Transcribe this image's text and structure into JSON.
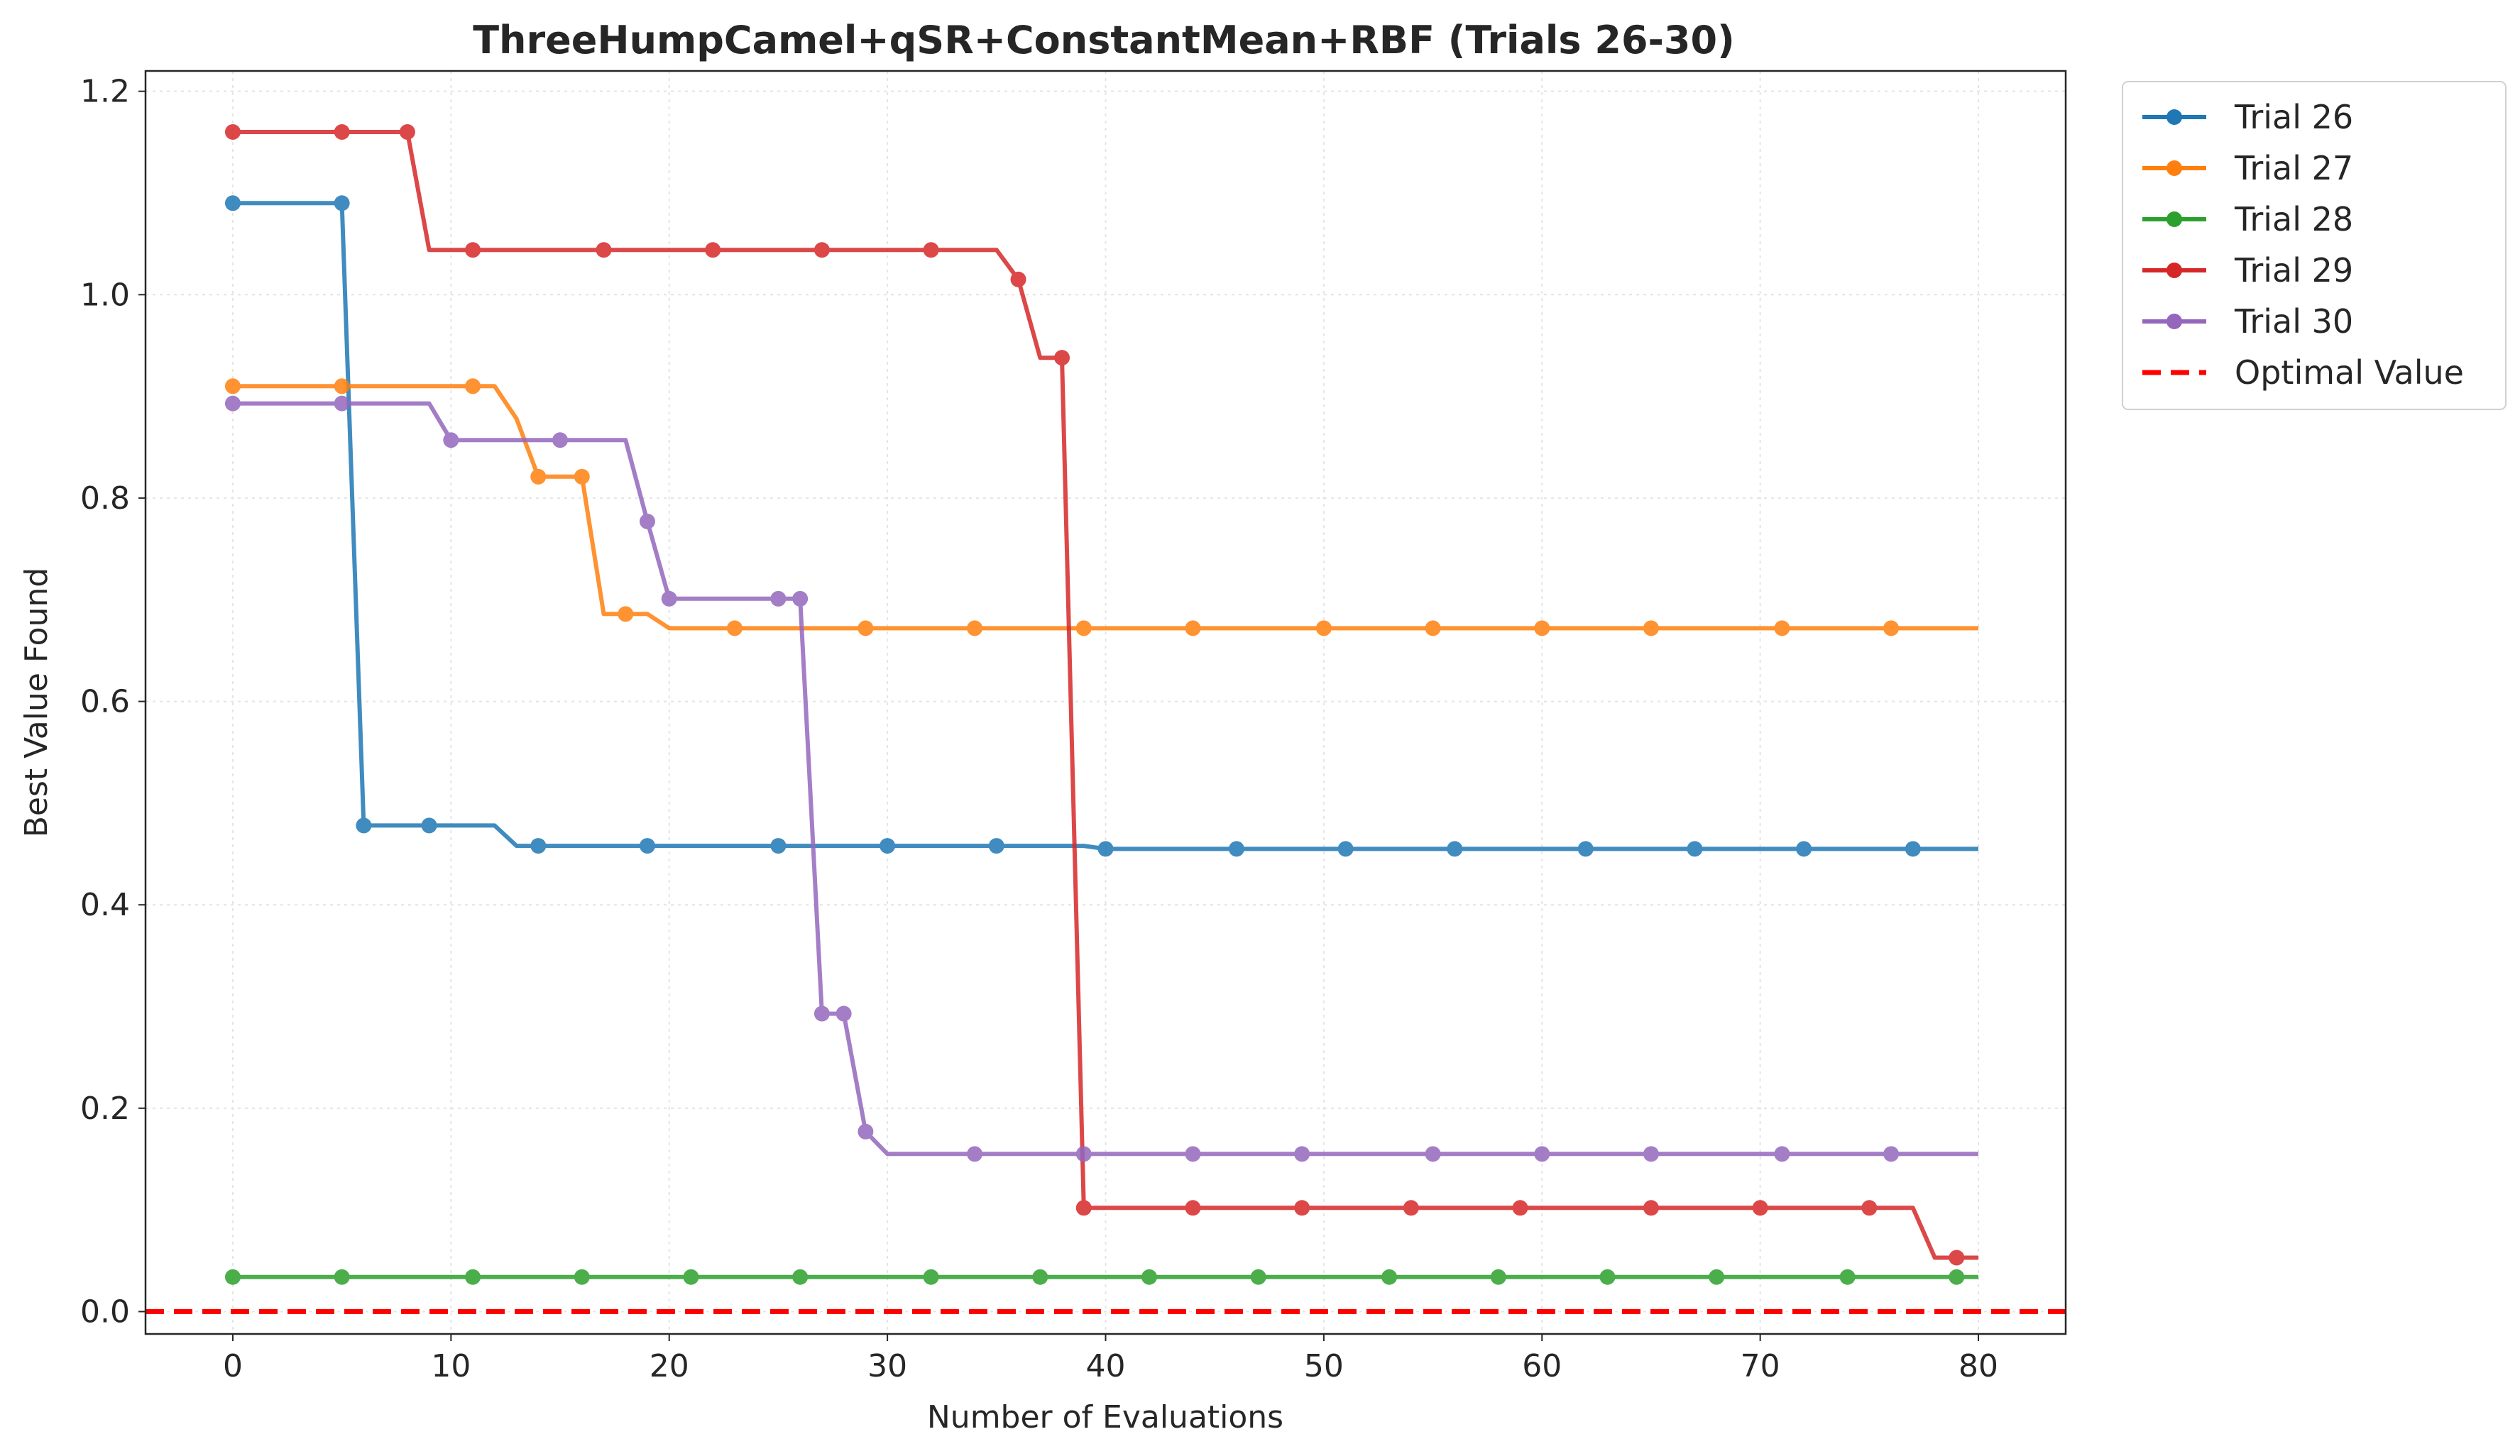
{
  "chart_data": {
    "type": "line",
    "title": "ThreeHumpCamel+qSR+ConstantMean+RBF (Trials 26-30)",
    "xlabel": "Number of Evaluations",
    "ylabel": "Best Value Found",
    "xlim": [
      -4,
      84
    ],
    "ylim": [
      -0.022,
      1.22
    ],
    "xticks": [
      0,
      10,
      20,
      30,
      40,
      50,
      60,
      70,
      80
    ],
    "yticks": [
      0.0,
      0.2,
      0.4,
      0.6,
      0.8,
      1.0,
      1.2
    ],
    "xtick_labels": [
      "0",
      "10",
      "20",
      "30",
      "40",
      "50",
      "60",
      "70",
      "80"
    ],
    "ytick_labels": [
      "0.0",
      "0.2",
      "0.4",
      "0.6",
      "0.8",
      "1.0",
      "1.2"
    ],
    "grid": true,
    "legend_position": "outside-top-right",
    "series": [
      {
        "name": "Trial 26",
        "color": "#1f77b4",
        "x": [
          0,
          1,
          2,
          3,
          4,
          5,
          6,
          7,
          8,
          9,
          10,
          11,
          12,
          13,
          14,
          15,
          16,
          17,
          18,
          19,
          20,
          21,
          22,
          23,
          24,
          25,
          26,
          27,
          28,
          29,
          30,
          31,
          32,
          33,
          34,
          35,
          36,
          37,
          38,
          39,
          40,
          41,
          42,
          43,
          44,
          45,
          46,
          47,
          48,
          49,
          50,
          51,
          52,
          53,
          54,
          55,
          56,
          57,
          58,
          59,
          60,
          61,
          62,
          63,
          64,
          65,
          66,
          67,
          68,
          69,
          70,
          71,
          72,
          73,
          74,
          75,
          76,
          77,
          78,
          79,
          80
        ],
        "y": [
          1.09,
          1.09,
          1.09,
          1.09,
          1.09,
          1.09,
          0.478,
          0.478,
          0.478,
          0.478,
          0.478,
          0.478,
          0.478,
          0.458,
          0.458,
          0.458,
          0.458,
          0.458,
          0.458,
          0.458,
          0.458,
          0.458,
          0.458,
          0.458,
          0.458,
          0.458,
          0.458,
          0.458,
          0.458,
          0.458,
          0.458,
          0.458,
          0.458,
          0.458,
          0.458,
          0.458,
          0.458,
          0.458,
          0.458,
          0.458,
          0.455,
          0.455,
          0.455,
          0.455,
          0.455,
          0.455,
          0.455,
          0.455,
          0.455,
          0.455,
          0.455,
          0.455,
          0.455,
          0.455,
          0.455,
          0.455,
          0.455,
          0.455,
          0.455,
          0.455,
          0.455,
          0.455,
          0.455,
          0.455,
          0.455,
          0.455,
          0.455,
          0.455,
          0.455,
          0.455,
          0.455,
          0.455,
          0.455,
          0.455,
          0.455,
          0.455,
          0.455,
          0.455,
          0.455,
          0.455,
          0.455
        ],
        "markers_x": [
          0,
          5,
          6,
          9,
          14,
          19,
          25,
          30,
          35,
          40,
          46,
          51,
          56,
          62,
          67,
          72,
          77
        ]
      },
      {
        "name": "Trial 27",
        "color": "#ff7f0e",
        "x": [
          0,
          1,
          2,
          3,
          4,
          5,
          6,
          7,
          8,
          9,
          10,
          11,
          12,
          13,
          14,
          15,
          16,
          17,
          18,
          19,
          20,
          21,
          22,
          23,
          24,
          25,
          26,
          27,
          28,
          29,
          30,
          31,
          32,
          33,
          34,
          35,
          36,
          37,
          38,
          39,
          40,
          41,
          42,
          43,
          44,
          45,
          46,
          47,
          48,
          49,
          50,
          51,
          52,
          53,
          54,
          55,
          56,
          57,
          58,
          59,
          60,
          61,
          62,
          63,
          64,
          65,
          66,
          67,
          68,
          69,
          70,
          71,
          72,
          73,
          74,
          75,
          76,
          77,
          78,
          79,
          80
        ],
        "y": [
          0.91,
          0.91,
          0.91,
          0.91,
          0.91,
          0.91,
          0.91,
          0.91,
          0.91,
          0.91,
          0.91,
          0.91,
          0.91,
          0.878,
          0.821,
          0.821,
          0.821,
          0.686,
          0.686,
          0.686,
          0.672,
          0.672,
          0.672,
          0.672,
          0.672,
          0.672,
          0.672,
          0.672,
          0.672,
          0.672,
          0.672,
          0.672,
          0.672,
          0.672,
          0.672,
          0.672,
          0.672,
          0.672,
          0.672,
          0.672,
          0.672,
          0.672,
          0.672,
          0.672,
          0.672,
          0.672,
          0.672,
          0.672,
          0.672,
          0.672,
          0.672,
          0.672,
          0.672,
          0.672,
          0.672,
          0.672,
          0.672,
          0.672,
          0.672,
          0.672,
          0.672,
          0.672,
          0.672,
          0.672,
          0.672,
          0.672,
          0.672,
          0.672,
          0.672,
          0.672,
          0.672,
          0.672,
          0.672,
          0.672,
          0.672,
          0.672,
          0.672,
          0.672,
          0.672,
          0.672,
          0.672
        ],
        "markers_x": [
          0,
          5,
          11,
          14,
          16,
          18,
          23,
          29,
          34,
          39,
          44,
          50,
          55,
          60,
          65,
          71,
          76
        ]
      },
      {
        "name": "Trial 28",
        "color": "#2ca02c",
        "x": [
          0,
          80
        ],
        "y": [
          0.034,
          0.034
        ],
        "markers_x": [
          0,
          5,
          11,
          16,
          21,
          26,
          32,
          37,
          42,
          47,
          53,
          58,
          63,
          68,
          74,
          79
        ]
      },
      {
        "name": "Trial 29",
        "color": "#d62728",
        "x": [
          0,
          1,
          2,
          3,
          4,
          5,
          6,
          7,
          8,
          9,
          10,
          11,
          12,
          13,
          14,
          15,
          16,
          17,
          18,
          19,
          20,
          21,
          22,
          23,
          24,
          25,
          26,
          27,
          28,
          29,
          30,
          31,
          32,
          33,
          34,
          35,
          36,
          37,
          38,
          39,
          40,
          41,
          42,
          43,
          44,
          45,
          46,
          47,
          48,
          49,
          50,
          51,
          52,
          53,
          54,
          55,
          56,
          57,
          58,
          59,
          60,
          61,
          62,
          63,
          64,
          65,
          66,
          67,
          68,
          69,
          70,
          71,
          72,
          73,
          74,
          75,
          76,
          77,
          78,
          79,
          80
        ],
        "y": [
          1.16,
          1.16,
          1.16,
          1.16,
          1.16,
          1.16,
          1.16,
          1.16,
          1.16,
          1.044,
          1.044,
          1.044,
          1.044,
          1.044,
          1.044,
          1.044,
          1.044,
          1.044,
          1.044,
          1.044,
          1.044,
          1.044,
          1.044,
          1.044,
          1.044,
          1.044,
          1.044,
          1.044,
          1.044,
          1.044,
          1.044,
          1.044,
          1.044,
          1.044,
          1.044,
          1.044,
          1.015,
          0.938,
          0.938,
          0.102,
          0.102,
          0.102,
          0.102,
          0.102,
          0.102,
          0.102,
          0.102,
          0.102,
          0.102,
          0.102,
          0.102,
          0.102,
          0.102,
          0.102,
          0.102,
          0.102,
          0.102,
          0.102,
          0.102,
          0.102,
          0.102,
          0.102,
          0.102,
          0.102,
          0.102,
          0.102,
          0.102,
          0.102,
          0.102,
          0.102,
          0.102,
          0.102,
          0.102,
          0.102,
          0.102,
          0.102,
          0.102,
          0.102,
          0.053,
          0.053,
          0.053
        ],
        "markers_x": [
          0,
          5,
          8,
          11,
          17,
          22,
          27,
          32,
          36,
          38,
          39,
          44,
          49,
          54,
          59,
          65,
          70,
          75,
          79
        ]
      },
      {
        "name": "Trial 30",
        "color": "#9467bd",
        "x": [
          0,
          1,
          2,
          3,
          4,
          5,
          6,
          7,
          8,
          9,
          10,
          11,
          12,
          13,
          14,
          15,
          16,
          17,
          18,
          19,
          20,
          21,
          22,
          23,
          24,
          25,
          26,
          27,
          28,
          29,
          30,
          31,
          32,
          33,
          34,
          35,
          36,
          37,
          38,
          39,
          40,
          41,
          42,
          43,
          44,
          45,
          46,
          47,
          48,
          49,
          50,
          51,
          52,
          53,
          54,
          55,
          56,
          57,
          58,
          59,
          60,
          61,
          62,
          63,
          64,
          65,
          66,
          67,
          68,
          69,
          70,
          71,
          72,
          73,
          74,
          75,
          76,
          77,
          78,
          79,
          80
        ],
        "y": [
          0.893,
          0.893,
          0.893,
          0.893,
          0.893,
          0.893,
          0.893,
          0.893,
          0.893,
          0.893,
          0.857,
          0.857,
          0.857,
          0.857,
          0.857,
          0.857,
          0.857,
          0.857,
          0.857,
          0.777,
          0.701,
          0.701,
          0.701,
          0.701,
          0.701,
          0.701,
          0.701,
          0.293,
          0.293,
          0.177,
          0.155,
          0.155,
          0.155,
          0.155,
          0.155,
          0.155,
          0.155,
          0.155,
          0.155,
          0.155,
          0.155,
          0.155,
          0.155,
          0.155,
          0.155,
          0.155,
          0.155,
          0.155,
          0.155,
          0.155,
          0.155,
          0.155,
          0.155,
          0.155,
          0.155,
          0.155,
          0.155,
          0.155,
          0.155,
          0.155,
          0.155,
          0.155,
          0.155,
          0.155,
          0.155,
          0.155,
          0.155,
          0.155,
          0.155,
          0.155,
          0.155,
          0.155,
          0.155,
          0.155,
          0.155,
          0.155,
          0.155,
          0.155,
          0.155,
          0.155,
          0.155
        ],
        "markers_x": [
          0,
          5,
          10,
          15,
          19,
          20,
          25,
          26,
          27,
          28,
          29,
          34,
          39,
          44,
          49,
          55,
          60,
          65,
          71,
          76
        ]
      }
    ],
    "reference_line": {
      "name": "Optimal Value",
      "y": 0.0,
      "color": "#ff0000",
      "style": "dashed"
    }
  }
}
